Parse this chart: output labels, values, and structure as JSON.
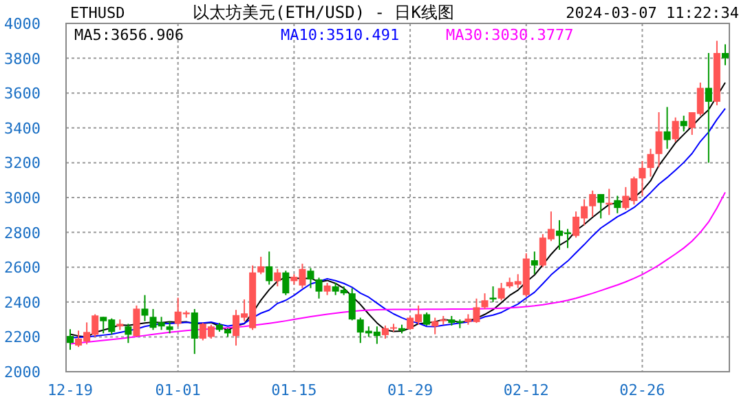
{
  "chart_data": {
    "type": "candlestick",
    "title": "以太坊美元(ETH/USD) - 日K线图",
    "annotations": [
      "ETHUSD",
      "2024-03-07 11:22:34"
    ],
    "categories": [
      "12-19",
      null,
      null,
      null,
      null,
      null,
      null,
      null,
      null,
      null,
      null,
      null,
      null,
      "01-01",
      null,
      null,
      null,
      null,
      null,
      null,
      null,
      null,
      null,
      null,
      null,
      null,
      null,
      "01-15",
      null,
      null,
      null,
      null,
      null,
      null,
      null,
      null,
      null,
      null,
      null,
      null,
      null,
      "01-29",
      null,
      null,
      null,
      null,
      null,
      null,
      null,
      null,
      null,
      null,
      null,
      null,
      null,
      "02-12",
      null,
      null,
      null,
      null,
      null,
      null,
      null,
      null,
      null,
      null,
      null,
      null,
      null,
      "02-26",
      null,
      null,
      null,
      null,
      null,
      null,
      null,
      null,
      null,
      null
    ],
    "ylim": [
      2000,
      4000
    ],
    "yticks": [
      2000,
      2200,
      2400,
      2600,
      2800,
      3000,
      3200,
      3400,
      3600,
      3800,
      4000
    ],
    "grid": true,
    "legend": "top left",
    "ohlc": [
      [
        2205,
        2244,
        2126,
        2165
      ],
      [
        2150,
        2236,
        2142,
        2190
      ],
      [
        2173,
        2283,
        2157,
        2228
      ],
      [
        2212,
        2330,
        2200,
        2323
      ],
      [
        2315,
        2315,
        2220,
        2290
      ],
      [
        2300,
        2306,
        2213,
        2228
      ],
      [
        2260,
        2300,
        2240,
        2275
      ],
      [
        2260,
        2275,
        2165,
        2212
      ],
      [
        2205,
        2380,
        2200,
        2362
      ],
      [
        2362,
        2440,
        2290,
        2322
      ],
      [
        2315,
        2360,
        2240,
        2252
      ],
      [
        2284,
        2315,
        2240,
        2260
      ],
      [
        2260,
        2290,
        2220,
        2240
      ],
      [
        2275,
        2425,
        2260,
        2345
      ],
      [
        2330,
        2350,
        2310,
        2340
      ],
      [
        2340,
        2360,
        2102,
        2190
      ],
      [
        2190,
        2280,
        2180,
        2275
      ],
      [
        2200,
        2270,
        2190,
        2260
      ],
      [
        2270,
        2280,
        2230,
        2240
      ],
      [
        2240,
        2250,
        2200,
        2220
      ],
      [
        2205,
        2355,
        2150,
        2325
      ],
      [
        2310,
        2415,
        2290,
        2335
      ],
      [
        2250,
        2610,
        2240,
        2570
      ],
      [
        2570,
        2660,
        2560,
        2605
      ],
      [
        2605,
        2690,
        2500,
        2520
      ],
      [
        2520,
        2590,
        2490,
        2570
      ],
      [
        2570,
        2580,
        2440,
        2450
      ],
      [
        2520,
        2560,
        2500,
        2545
      ],
      [
        2495,
        2620,
        2480,
        2590
      ],
      [
        2580,
        2595,
        2480,
        2530
      ],
      [
        2530,
        2540,
        2420,
        2460
      ],
      [
        2460,
        2510,
        2440,
        2495
      ],
      [
        2490,
        2510,
        2440,
        2460
      ],
      [
        2470,
        2490,
        2440,
        2450
      ],
      [
        2450,
        2480,
        2295,
        2300
      ],
      [
        2300,
        2310,
        2165,
        2225
      ],
      [
        2235,
        2260,
        2200,
        2220
      ],
      [
        2230,
        2260,
        2160,
        2205
      ],
      [
        2210,
        2265,
        2190,
        2250
      ],
      [
        2250,
        2275,
        2230,
        2255
      ],
      [
        2250,
        2270,
        2220,
        2235
      ],
      [
        2245,
        2320,
        2240,
        2310
      ],
      [
        2285,
        2380,
        2270,
        2330
      ],
      [
        2330,
        2340,
        2265,
        2270
      ],
      [
        2260,
        2310,
        2215,
        2290
      ],
      [
        2290,
        2320,
        2270,
        2300
      ],
      [
        2300,
        2320,
        2265,
        2280
      ],
      [
        2290,
        2300,
        2250,
        2280
      ],
      [
        2285,
        2330,
        2270,
        2305
      ],
      [
        2285,
        2420,
        2280,
        2370
      ],
      [
        2370,
        2450,
        2360,
        2410
      ],
      [
        2425,
        2490,
        2400,
        2415
      ],
      [
        2420,
        2510,
        2410,
        2480
      ],
      [
        2490,
        2540,
        2480,
        2515
      ],
      [
        2500,
        2560,
        2480,
        2520
      ],
      [
        2440,
        2680,
        2430,
        2650
      ],
      [
        2640,
        2690,
        2560,
        2610
      ],
      [
        2610,
        2790,
        2600,
        2770
      ],
      [
        2760,
        2920,
        2750,
        2820
      ],
      [
        2810,
        2870,
        2700,
        2780
      ],
      [
        2800,
        2820,
        2710,
        2790
      ],
      [
        2780,
        2920,
        2770,
        2890
      ],
      [
        2880,
        2990,
        2840,
        2950
      ],
      [
        2950,
        3040,
        2890,
        3020
      ],
      [
        3020,
        3020,
        2880,
        2970
      ],
      [
        2960,
        3050,
        2900,
        2970
      ],
      [
        2985,
        3010,
        2910,
        2940
      ],
      [
        2940,
        3060,
        2930,
        3010
      ],
      [
        2980,
        3120,
        2960,
        3110
      ],
      [
        3110,
        3210,
        3010,
        3170
      ],
      [
        3170,
        3280,
        3120,
        3250
      ],
      [
        3250,
        3490,
        3175,
        3380
      ],
      [
        3380,
        3520,
        3280,
        3330
      ],
      [
        3335,
        3460,
        3320,
        3440
      ],
      [
        3440,
        3470,
        3380,
        3410
      ],
      [
        3400,
        3490,
        3360,
        3490
      ],
      [
        3480,
        3660,
        3470,
        3630
      ],
      [
        3630,
        3830,
        3200,
        3550
      ],
      [
        3550,
        3900,
        3530,
        3830
      ],
      [
        3830,
        3880,
        3760,
        3800
      ]
    ],
    "series": [
      {
        "name": "MA5:3656.906",
        "type": "line",
        "color": "#000000",
        "values": [
          2215,
          2205,
          2200,
          2225,
          2239,
          2252,
          2269,
          2266,
          2273,
          2280,
          2285,
          2282,
          2287,
          2284,
          2287,
          2275,
          2278,
          2282,
          2261,
          2237,
          2264,
          2276,
          2338,
          2411,
          2471,
          2520,
          2543,
          2538,
          2535,
          2537,
          2515,
          2524,
          2507,
          2479,
          2433,
          2386,
          2331,
          2280,
          2240,
          2231,
          2233,
          2251,
          2276,
          2280,
          2287,
          2300,
          2294,
          2284,
          2291,
          2307,
          2329,
          2356,
          2396,
          2438,
          2468,
          2516,
          2555,
          2613,
          2674,
          2726,
          2754,
          2810,
          2846,
          2886,
          2924,
          2960,
          2970,
          2982,
          3000,
          3040,
          3096,
          3184,
          3248,
          3314,
          3362,
          3410,
          3460,
          3504,
          3582,
          3660
        ]
      },
      {
        "name": "MA10:3510.491",
        "type": "line",
        "color": "#0000ff",
        "values": [
          2195,
          2198,
          2200,
          2205,
          2210,
          2215,
          2225,
          2235,
          2245,
          2260,
          2269,
          2276,
          2277,
          2279,
          2284,
          2280,
          2280,
          2285,
          2273,
          2262,
          2270,
          2277,
          2310,
          2336,
          2354,
          2392,
          2410,
          2438,
          2473,
          2504,
          2518,
          2534,
          2523,
          2507,
          2485,
          2451,
          2428,
          2394,
          2360,
          2332,
          2310,
          2291,
          2278,
          2260,
          2259,
          2267,
          2273,
          2280,
          2286,
          2297,
          2315,
          2325,
          2340,
          2365,
          2388,
          2423,
          2456,
          2505,
          2556,
          2597,
          2635,
          2683,
          2730,
          2780,
          2825,
          2857,
          2890,
          2914,
          2943,
          2982,
          3028,
          3077,
          3115,
          3157,
          3201,
          3253,
          3322,
          3376,
          3448,
          3511
        ]
      },
      {
        "name": "MA30:3030.3777",
        "type": "line",
        "color": "#ff00ff",
        "values": [
          2160,
          2165,
          2170,
          2175,
          2180,
          2185,
          2190,
          2196,
          2202,
          2208,
          2214,
          2220,
          2226,
          2231,
          2236,
          2240,
          2243,
          2246,
          2249,
          2252,
          2256,
          2260,
          2266,
          2272,
          2278,
          2285,
          2292,
          2300,
          2308,
          2316,
          2323,
          2330,
          2336,
          2342,
          2347,
          2351,
          2354,
          2356,
          2357,
          2358,
          2358,
          2358,
          2358,
          2359,
          2359,
          2359,
          2360,
          2360,
          2360,
          2361,
          2362,
          2363,
          2365,
          2367,
          2370,
          2374,
          2378,
          2384,
          2392,
          2400,
          2410,
          2422,
          2436,
          2450,
          2466,
          2482,
          2498,
          2516,
          2536,
          2558,
          2584,
          2612,
          2644,
          2676,
          2710,
          2750,
          2800,
          2860,
          2940,
          3030
        ]
      }
    ]
  }
}
